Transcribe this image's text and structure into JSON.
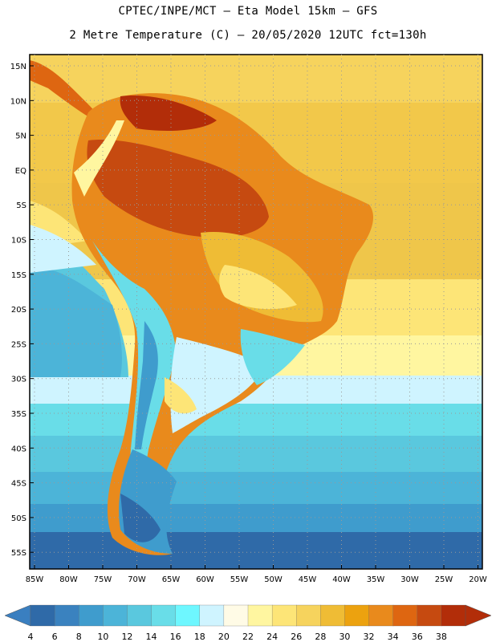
{
  "header": {
    "line1": "CPTEC/INPE/MCT –  Eta Model 15km – GFS",
    "line2": "2 Metre Temperature (C) – 20/05/2020 12UTC fct=130h"
  },
  "map": {
    "lat_labels": [
      "15N",
      "10N",
      "5N",
      "EQ",
      "5S",
      "10S",
      "15S",
      "20S",
      "25S",
      "30S",
      "35S",
      "40S",
      "45S",
      "50S",
      "55S"
    ],
    "lon_labels": [
      "85W",
      "80W",
      "75W",
      "70W",
      "65W",
      "60W",
      "55W",
      "50W",
      "45W",
      "40W",
      "35W",
      "30W",
      "25W",
      "20W"
    ]
  },
  "colorbar": {
    "labels": [
      "4",
      "6",
      "8",
      "10",
      "12",
      "14",
      "16",
      "18",
      "20",
      "22",
      "24",
      "26",
      "28",
      "30",
      "32",
      "34",
      "36",
      "38"
    ],
    "colors": [
      "#2f6aa8",
      "#3a82bf",
      "#3f9ccd",
      "#4cb4d8",
      "#5ac8de",
      "#69dde8",
      "#6ef7ff",
      "#cff4ff",
      "#fffbe6",
      "#fff6a0",
      "#fde577",
      "#f6d35d",
      "#efbc35",
      "#eca20f",
      "#e98a1c",
      "#de6611",
      "#c64a10",
      "#b22d09"
    ],
    "low_color": "#3a7fc0",
    "high_color": "#b22d09"
  }
}
